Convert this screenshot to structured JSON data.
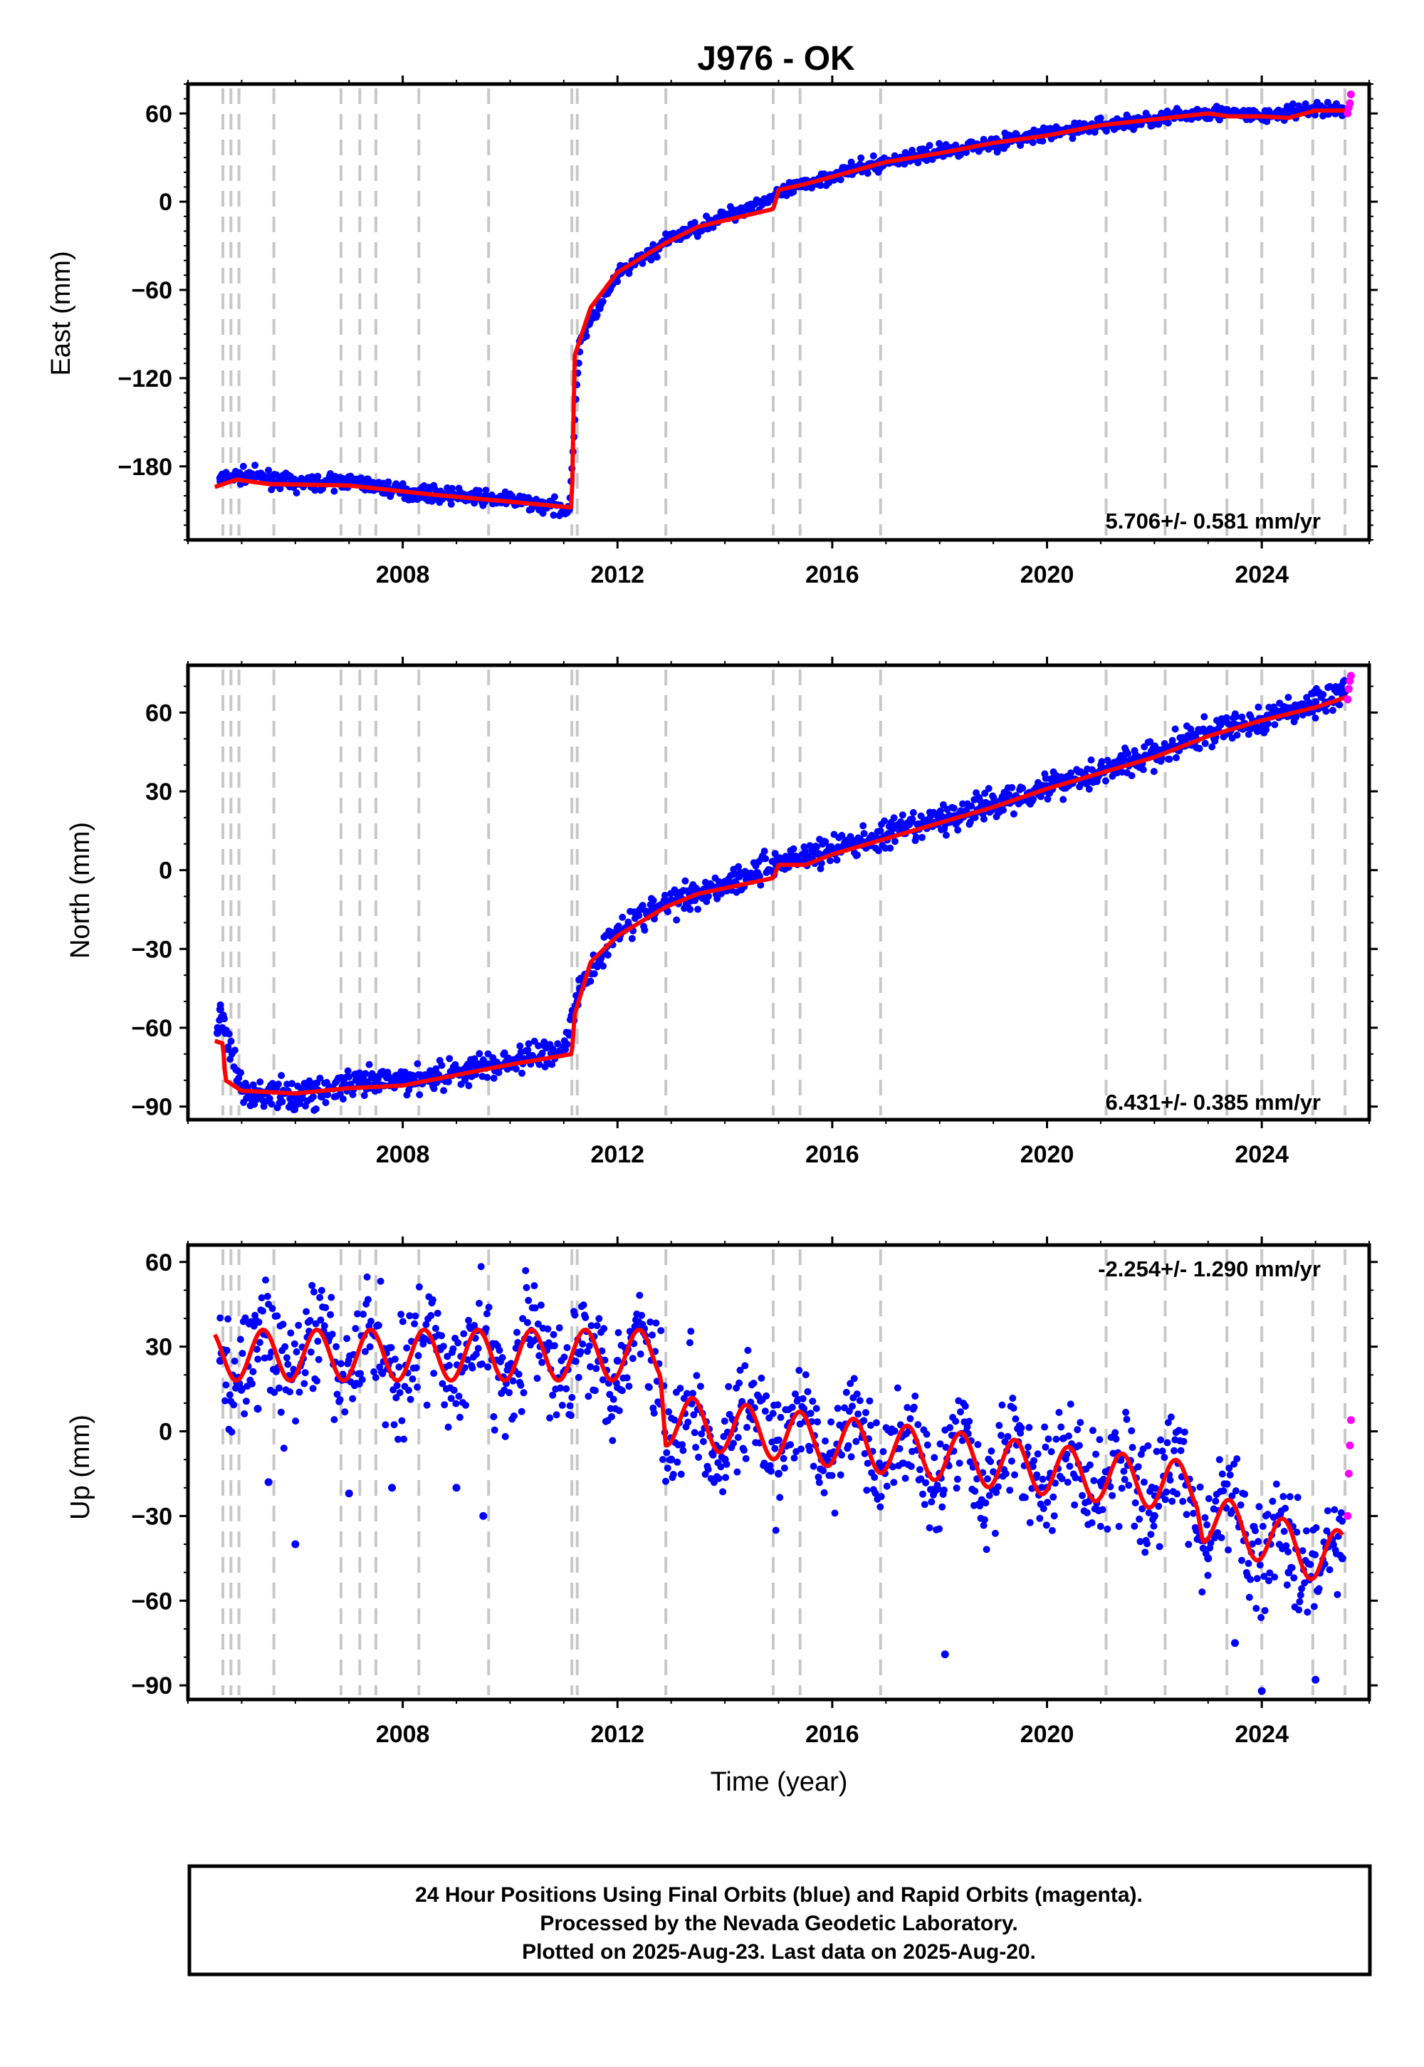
{
  "colors": {
    "final_orbits": "#0000ff",
    "rapid_orbits": "#ff00ff",
    "model": "#ff0000",
    "event_lines": "#c8c8c8",
    "frame": "#000000"
  },
  "footer": {
    "line1": "24 Hour Positions Using Final Orbits (blue) and Rapid Orbits (magenta).",
    "line2": "Processed by the Nevada Geodetic Laboratory.",
    "line3": "Plotted on 2025-Aug-23. Last data on 2025-Aug-20."
  },
  "chart_data": {
    "type": "scatter",
    "title": "J976 - OK",
    "xlabel": "Time (year)",
    "xlim": [
      2004.0,
      2026.0
    ],
    "x_ticks": [
      2008,
      2012,
      2016,
      2020,
      2024
    ],
    "grid": false,
    "event_lines": [
      2004.65,
      2004.8,
      2004.95,
      2005.6,
      2006.85,
      2007.2,
      2007.5,
      2008.3,
      2009.6,
      2011.15,
      2011.25,
      2012.9,
      2014.9,
      2015.4,
      2016.9,
      2021.1,
      2022.2,
      2023.35,
      2024.0,
      2024.95,
      2025.55
    ],
    "panels": [
      {
        "ylabel": "East (mm)",
        "ylim": [
          -230,
          80
        ],
        "y_ticks": [
          60,
          0,
          -60,
          -120,
          -180
        ],
        "rate_text": "5.706+/- 0.581 mm/yr",
        "rate_position": "bottom-right",
        "model": [
          [
            2004.5,
            -194
          ],
          [
            2004.9,
            -189
          ],
          [
            2005.5,
            -192
          ],
          [
            2007.0,
            -193
          ],
          [
            2008.5,
            -199
          ],
          [
            2010.0,
            -204
          ],
          [
            2011.15,
            -208
          ],
          [
            2011.2,
            -105
          ],
          [
            2011.5,
            -72
          ],
          [
            2012.0,
            -48
          ],
          [
            2012.9,
            -28
          ],
          [
            2013.5,
            -17
          ],
          [
            2014.9,
            -5
          ],
          [
            2015.0,
            8
          ],
          [
            2015.5,
            12
          ],
          [
            2016.5,
            22
          ],
          [
            2017.0,
            27
          ],
          [
            2018.0,
            33
          ],
          [
            2019.0,
            40
          ],
          [
            2020.0,
            45
          ],
          [
            2021.0,
            52
          ],
          [
            2022.0,
            56
          ],
          [
            2023.0,
            60
          ],
          [
            2023.4,
            58
          ],
          [
            2024.0,
            58
          ],
          [
            2024.5,
            57
          ],
          [
            2025.0,
            62
          ],
          [
            2025.6,
            62
          ]
        ],
        "final_orbits": [
          [
            2004.6,
            -188
          ],
          [
            2005.2,
            -186
          ],
          [
            2006.0,
            -192
          ],
          [
            2007.0,
            -190
          ],
          [
            2008.0,
            -197
          ],
          [
            2009.0,
            -200
          ],
          [
            2010.0,
            -203
          ],
          [
            2011.1,
            -209
          ],
          [
            2011.3,
            -95
          ],
          [
            2012.0,
            -50
          ],
          [
            2013.0,
            -25
          ],
          [
            2014.0,
            -10
          ],
          [
            2015.0,
            5
          ],
          [
            2016.0,
            18
          ],
          [
            2017.0,
            27
          ],
          [
            2018.0,
            34
          ],
          [
            2019.0,
            40
          ],
          [
            2020.0,
            46
          ],
          [
            2021.0,
            52
          ],
          [
            2022.0,
            56
          ],
          [
            2023.0,
            61
          ],
          [
            2024.0,
            58
          ],
          [
            2025.0,
            63
          ],
          [
            2025.55,
            62
          ]
        ],
        "rapid_orbits": [
          [
            2025.6,
            60
          ],
          [
            2025.62,
            64
          ],
          [
            2025.64,
            67
          ],
          [
            2025.66,
            73
          ]
        ]
      },
      {
        "ylabel": "North (mm)",
        "ylim": [
          -95,
          78
        ],
        "y_ticks": [
          60,
          30,
          0,
          -30,
          -60,
          -90
        ],
        "rate_text": "6.431+/- 0.385 mm/yr",
        "rate_position": "bottom-right",
        "model": [
          [
            2004.5,
            -65
          ],
          [
            2004.65,
            -66
          ],
          [
            2004.7,
            -80
          ],
          [
            2005.0,
            -84
          ],
          [
            2006.0,
            -85
          ],
          [
            2007.0,
            -83
          ],
          [
            2008.0,
            -82
          ],
          [
            2009.0,
            -78
          ],
          [
            2010.0,
            -74
          ],
          [
            2011.15,
            -70
          ],
          [
            2011.2,
            -55
          ],
          [
            2011.5,
            -35
          ],
          [
            2012.0,
            -25
          ],
          [
            2012.9,
            -14
          ],
          [
            2013.5,
            -9
          ],
          [
            2014.9,
            -3
          ],
          [
            2015.0,
            2
          ],
          [
            2015.5,
            2
          ],
          [
            2016.0,
            6
          ],
          [
            2017.0,
            12
          ],
          [
            2018.0,
            18
          ],
          [
            2019.0,
            24
          ],
          [
            2020.0,
            31
          ],
          [
            2021.0,
            37
          ],
          [
            2022.0,
            43
          ],
          [
            2023.0,
            51
          ],
          [
            2024.0,
            57
          ],
          [
            2025.0,
            62
          ],
          [
            2025.6,
            66
          ]
        ],
        "final_orbits": [
          [
            2004.55,
            -62
          ],
          [
            2004.6,
            -53
          ],
          [
            2005.0,
            -84
          ],
          [
            2006.0,
            -86
          ],
          [
            2007.0,
            -82
          ],
          [
            2008.0,
            -80
          ],
          [
            2009.0,
            -77
          ],
          [
            2010.0,
            -73
          ],
          [
            2011.0,
            -68
          ],
          [
            2011.3,
            -45
          ],
          [
            2012.0,
            -22
          ],
          [
            2013.0,
            -12
          ],
          [
            2014.0,
            -5
          ],
          [
            2015.0,
            3
          ],
          [
            2016.0,
            8
          ],
          [
            2017.0,
            13
          ],
          [
            2018.0,
            19
          ],
          [
            2019.0,
            25
          ],
          [
            2020.0,
            32
          ],
          [
            2021.0,
            38
          ],
          [
            2022.0,
            44
          ],
          [
            2023.0,
            52
          ],
          [
            2024.0,
            57
          ],
          [
            2025.0,
            64
          ],
          [
            2025.55,
            68
          ]
        ],
        "rapid_orbits": [
          [
            2025.6,
            65
          ],
          [
            2025.62,
            69
          ],
          [
            2025.64,
            72
          ],
          [
            2025.66,
            74
          ]
        ]
      },
      {
        "ylabel": "Up (mm)",
        "ylim": [
          -95,
          66
        ],
        "y_ticks": [
          60,
          30,
          0,
          -30,
          -60,
          -90
        ],
        "rate_text": "-2.254+/- 1.290 mm/yr",
        "rate_position": "top-right",
        "seasonal_amplitude_mm": 9,
        "model_trend": [
          [
            2004.5,
            27
          ],
          [
            2012.8,
            27
          ],
          [
            2012.9,
            4
          ],
          [
            2017.0,
            -6
          ],
          [
            2021.0,
            -16
          ],
          [
            2022.8,
            -20
          ],
          [
            2022.9,
            -30
          ],
          [
            2025.0,
            -44
          ],
          [
            2025.5,
            -44
          ]
        ],
        "final_orbits_spread_mm": 14,
        "final_orbits": [
          [
            2004.6,
            25
          ],
          [
            2005.0,
            15
          ],
          [
            2005.3,
            8
          ],
          [
            2005.5,
            -18
          ],
          [
            2006.0,
            -40
          ],
          [
            2007.0,
            -22
          ],
          [
            2007.8,
            -20
          ],
          [
            2009.0,
            -20
          ],
          [
            2009.5,
            -30
          ],
          [
            2012.0,
            25
          ],
          [
            2013.0,
            -10
          ],
          [
            2014.0,
            -10
          ],
          [
            2015.0,
            -15
          ],
          [
            2016.0,
            -8
          ],
          [
            2017.0,
            -12
          ],
          [
            2018.0,
            -15
          ],
          [
            2018.1,
            -79
          ],
          [
            2020.0,
            -20
          ],
          [
            2021.0,
            -18
          ],
          [
            2022.0,
            -30
          ],
          [
            2023.0,
            -45
          ],
          [
            2023.5,
            -75
          ],
          [
            2024.0,
            -92
          ],
          [
            2024.5,
            -50
          ],
          [
            2025.0,
            -88
          ],
          [
            2025.5,
            -45
          ]
        ],
        "rapid_orbits": [
          [
            2025.6,
            -30
          ],
          [
            2025.62,
            -15
          ],
          [
            2025.64,
            -5
          ],
          [
            2025.66,
            4
          ]
        ]
      }
    ]
  }
}
